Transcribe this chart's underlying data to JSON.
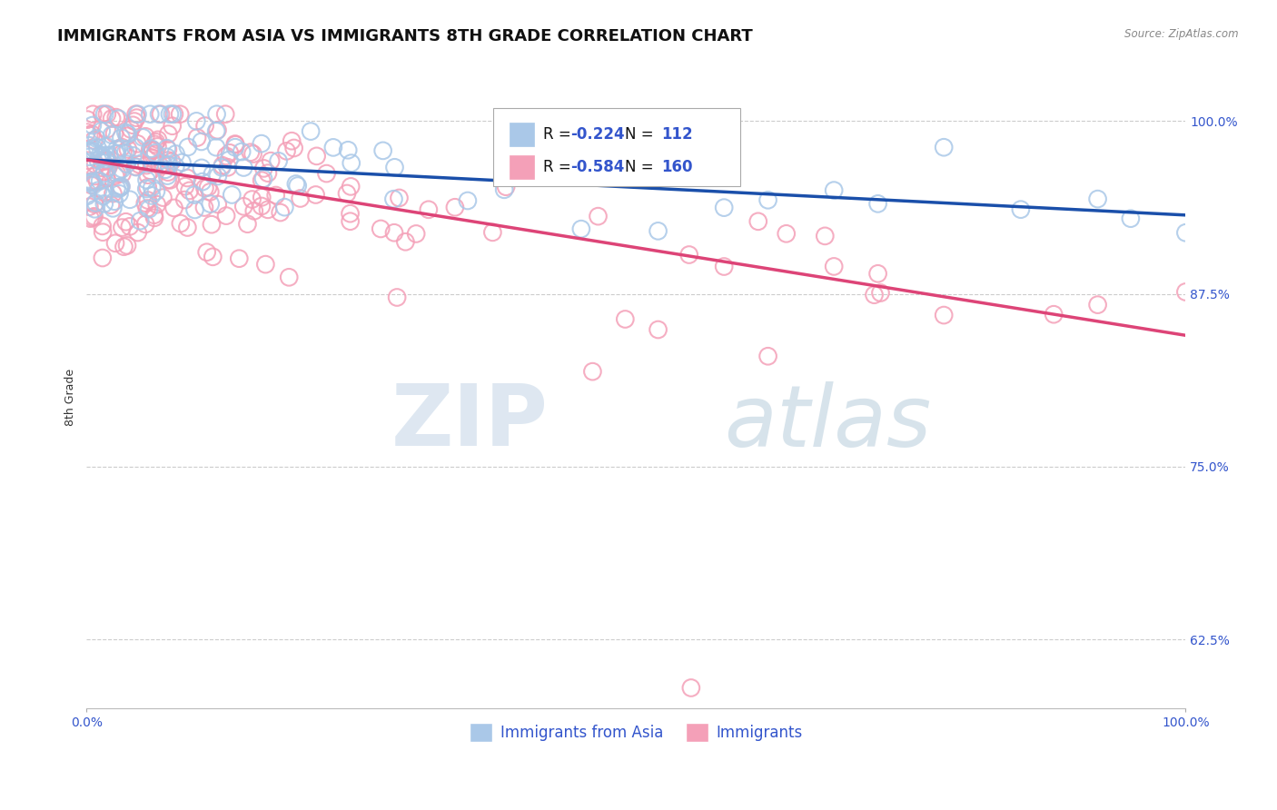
{
  "title": "IMMIGRANTS FROM ASIA VS IMMIGRANTS 8TH GRADE CORRELATION CHART",
  "source_text": "Source: ZipAtlas.com",
  "ylabel": "8th Grade",
  "xlim": [
    0.0,
    1.0
  ],
  "ylim": [
    0.575,
    1.025
  ],
  "xtick_labels": [
    "0.0%",
    "100.0%"
  ],
  "xtick_positions": [
    0.0,
    1.0
  ],
  "ytick_labels": [
    "62.5%",
    "75.0%",
    "87.5%",
    "100.0%"
  ],
  "ytick_positions": [
    0.625,
    0.75,
    0.875,
    1.0
  ],
  "blue_R": -0.224,
  "blue_N": 112,
  "pink_R": -0.584,
  "pink_N": 160,
  "blue_color": "#aac8e8",
  "pink_color": "#f4a0b8",
  "blue_line_color": "#1a4faa",
  "pink_line_color": "#dd4477",
  "blue_trend_x0": 0.0,
  "blue_trend_y0": 0.972,
  "blue_trend_x1": 1.0,
  "blue_trend_y1": 0.932,
  "pink_trend_x0": 0.0,
  "pink_trend_y0": 0.972,
  "pink_trend_x1": 1.0,
  "pink_trend_y1": 0.845,
  "legend_label_blue": "Immigrants from Asia",
  "legend_label_pink": "Immigrants",
  "watermark_zip": "ZIP",
  "watermark_atlas": "atlas",
  "background_color": "#ffffff",
  "grid_color": "#cccccc",
  "blue_seed": 42,
  "pink_seed": 7,
  "title_fontsize": 13,
  "axis_label_fontsize": 9,
  "tick_fontsize": 10,
  "legend_fontsize": 12
}
